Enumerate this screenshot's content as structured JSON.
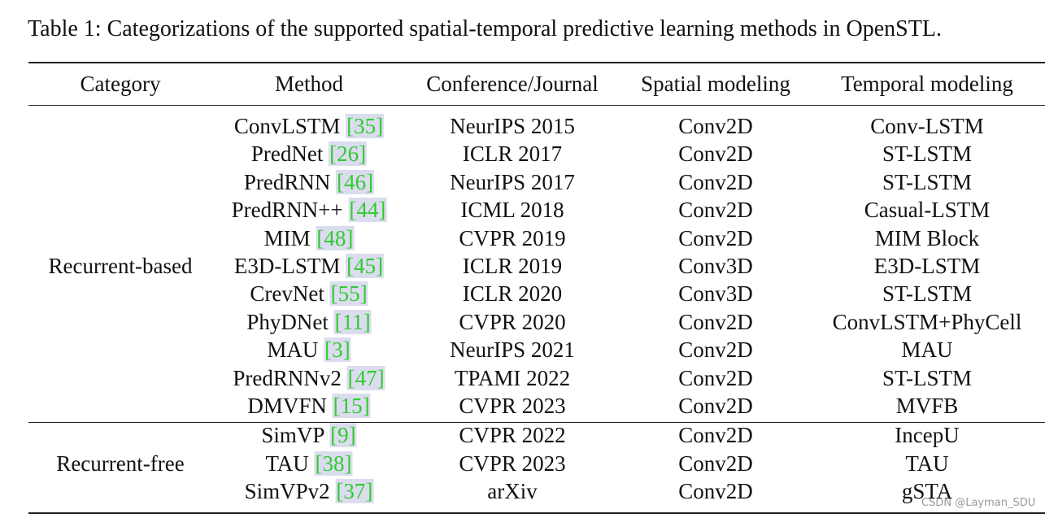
{
  "caption": "Table 1: Categorizations of the supported spatial-temporal predictive learning methods in OpenSTL.",
  "header": [
    "Category",
    "Method",
    "Conference/Journal",
    "Spatial modeling",
    "Temporal modeling"
  ],
  "groups": [
    {
      "category": "Recurrent-based",
      "rows": [
        {
          "method": "ConvLSTM",
          "ref": "[35]",
          "venue": "NeurIPS 2015",
          "spatial": "Conv2D",
          "temporal": "Conv-LSTM"
        },
        {
          "method": "PredNet",
          "ref": "[26]",
          "venue": "ICLR 2017",
          "spatial": "Conv2D",
          "temporal": "ST-LSTM"
        },
        {
          "method": "PredRNN",
          "ref": "[46]",
          "venue": "NeurIPS 2017",
          "spatial": "Conv2D",
          "temporal": "ST-LSTM"
        },
        {
          "method": "PredRNN++",
          "ref": "[44]",
          "venue": "ICML 2018",
          "spatial": "Conv2D",
          "temporal": "Casual-LSTM"
        },
        {
          "method": "MIM",
          "ref": "[48]",
          "venue": "CVPR 2019",
          "spatial": "Conv2D",
          "temporal": "MIM Block"
        },
        {
          "method": "E3D-LSTM",
          "ref": "[45]",
          "venue": "ICLR 2019",
          "spatial": "Conv3D",
          "temporal": "E3D-LSTM"
        },
        {
          "method": "CrevNet",
          "ref": "[55]",
          "venue": "ICLR 2020",
          "spatial": "Conv3D",
          "temporal": "ST-LSTM"
        },
        {
          "method": "PhyDNet",
          "ref": "[11]",
          "venue": "CVPR 2020",
          "spatial": "Conv2D",
          "temporal": "ConvLSTM+PhyCell"
        },
        {
          "method": "MAU",
          "ref": "[3]",
          "venue": "NeurIPS 2021",
          "spatial": "Conv2D",
          "temporal": "MAU"
        },
        {
          "method": "PredRNNv2",
          "ref": "[47]",
          "venue": "TPAMI 2022",
          "spatial": "Conv2D",
          "temporal": "ST-LSTM"
        },
        {
          "method": "DMVFN",
          "ref": "[15]",
          "venue": "CVPR 2023",
          "spatial": "Conv2D",
          "temporal": "MVFB"
        }
      ]
    },
    {
      "category": "Recurrent-free",
      "rows": [
        {
          "method": "SimVP",
          "ref": "[9]",
          "venue": "CVPR 2022",
          "spatial": "Conv2D",
          "temporal": "IncepU"
        },
        {
          "method": "TAU",
          "ref": "[38]",
          "venue": "CVPR 2023",
          "spatial": "Conv2D",
          "temporal": "TAU"
        },
        {
          "method": "SimVPv2",
          "ref": "[37]",
          "venue": "arXiv",
          "spatial": "Conv2D",
          "temporal": "gSTA"
        }
      ]
    }
  ],
  "watermark": "CSDN @Layman_SDU"
}
